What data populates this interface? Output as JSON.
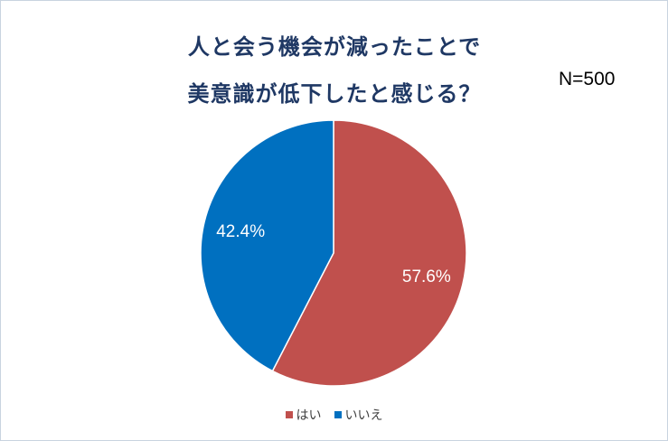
{
  "chart_data": {
    "type": "pie",
    "title": [
      "人と会う機会が減ったことで",
      "美意識が低下したと感じる？"
    ],
    "annotation": "N=500",
    "categories": [
      "はい",
      "いいえ"
    ],
    "values": [
      57.6,
      42.4
    ],
    "data_labels": [
      "57.6%",
      "42.4%"
    ],
    "colors": [
      "#c0504d",
      "#0070c0"
    ],
    "legend": "bottom"
  }
}
